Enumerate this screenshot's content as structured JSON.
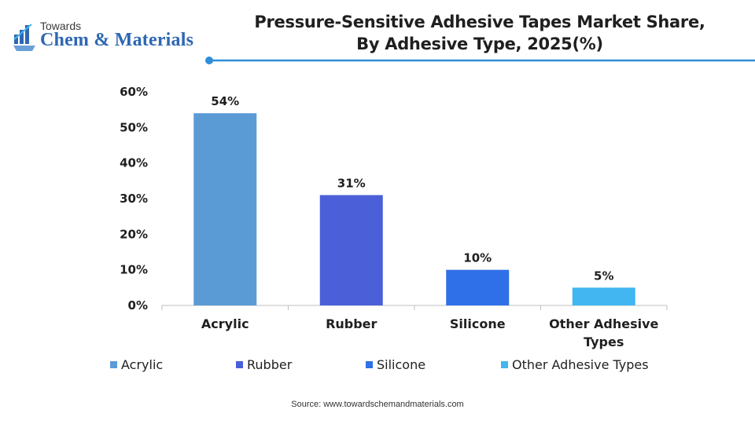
{
  "logo": {
    "top": "Towards",
    "name": "Chem & Materials",
    "icon": "flask-chart-icon"
  },
  "title_line1": "Pressure-Sensitive Adhesive Tapes Market Share,",
  "title_line2": "By Adhesive Type, 2025(%)",
  "source": "Source: www.towardschemandmaterials.com",
  "colors": {
    "accent_line": "#2e8ed8",
    "acrylic": "#5b9bd5",
    "rubber": "#4a5fd8",
    "silicone": "#2f6fe8",
    "other": "#41b6f0"
  },
  "chart_data": {
    "type": "bar",
    "title": "Pressure-Sensitive Adhesive Tapes Market Share, By Adhesive Type, 2025(%)",
    "categories": [
      "Acrylic",
      "Rubber",
      "Silicone",
      "Other Adhesive Types"
    ],
    "category_lines": [
      [
        "Acrylic"
      ],
      [
        "Rubber"
      ],
      [
        "Silicone"
      ],
      [
        "Other Adhesive",
        "Types"
      ]
    ],
    "values": [
      54,
      31,
      10,
      5
    ],
    "data_labels": [
      "54%",
      "31%",
      "10%",
      "5%"
    ],
    "ylim": [
      0,
      60
    ],
    "yticks": [
      0,
      10,
      20,
      30,
      40,
      50,
      60
    ],
    "ytick_labels": [
      "0%",
      "10%",
      "20%",
      "30%",
      "40%",
      "50%",
      "60%"
    ],
    "xlabel": "",
    "ylabel": "",
    "grid": false,
    "legend_position": "bottom",
    "legend": [
      "Acrylic",
      "Rubber",
      "Silicone",
      "Other Adhesive Types"
    ]
  }
}
